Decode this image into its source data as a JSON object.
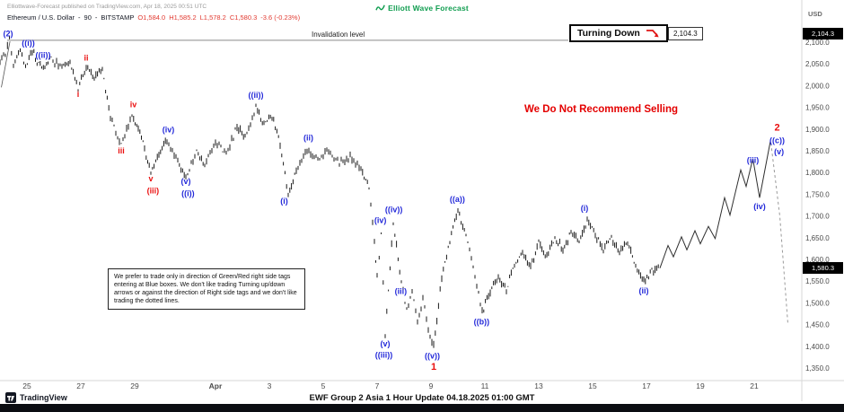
{
  "header": {
    "published": "Elliottwave-Forecast published on TradingView.com, Apr 18, 2025 00:51 UTC",
    "logo_text": "Elliott Wave Forecast",
    "symbol": "Ethereum / U.S. Dollar",
    "sep": "-",
    "interval": "90",
    "exchange": "BITSTAMP",
    "open": "O1,584.0",
    "high": "H1,585.2",
    "low": "L1,578.2",
    "close": "C1,580.3",
    "change": "-3.6 (-0.23%)"
  },
  "labels": {
    "invalidation": "Invalidation level",
    "turning_down": "Turning Down",
    "alert_price": "2,104.3",
    "last_price": "1,580.3",
    "not_selling": "We Do Not Recommend Selling",
    "note": "We prefer to trade only in direction of Green/Red right side tags entering at Blue boxes. We don't like trading Turning up/down arrows or against the direction of Right side tags and we don't like trading the dotted lines."
  },
  "footer": {
    "tradingview": "TradingView",
    "title": "EWF Group 2 Asia 1 Hour Update 04.18.2025 01:00 GMT"
  },
  "colors": {
    "brand_green": "#0f9d4f",
    "label_blue": "#2228d9",
    "label_red": "#ea0f0f",
    "candle": "#1a1a1a",
    "axis_text": "#4a4a4a",
    "badge_bg": "#000000",
    "ohlc_down": "#e23b32",
    "no_sell_red": "#e40000"
  },
  "chart_data": {
    "type": "candlestick",
    "title": "Ethereum / U.S. Dollar, 90 minute, BITSTAMP — Elliott Wave count",
    "currency": "USD",
    "grid": false,
    "day_zero_date": "2025-03-24",
    "invalidation_level": 2104.3,
    "last_price": 1580.3,
    "y_axis": {
      "ticks": [
        2100,
        2050,
        2000,
        1950,
        1900,
        1850,
        1800,
        1750,
        1700,
        1650,
        1600,
        1550,
        1500,
        1450,
        1400,
        1350
      ],
      "labels": [
        "2,100.0",
        "2,050.0",
        "2,000.0",
        "1,950.0",
        "1,900.0",
        "1,850.0",
        "1,800.0",
        "1,750.0",
        "1,700.0",
        "1,650.0",
        "1,600.0",
        "1,550.0",
        "1,500.0",
        "1,450.0",
        "1,400.0",
        "1,350.0"
      ],
      "ylim": [
        1350,
        2100
      ]
    },
    "x_axis": {
      "label_row": [
        {
          "label": "25",
          "day": 1
        },
        {
          "label": "27",
          "day": 3
        },
        {
          "label": "29",
          "day": 5
        },
        {
          "label": "Apr",
          "day": 8,
          "bold": true
        },
        {
          "label": "3",
          "day": 10
        },
        {
          "label": "5",
          "day": 12
        },
        {
          "label": "7",
          "day": 14
        },
        {
          "label": "9",
          "day": 16
        },
        {
          "label": "11",
          "day": 18
        },
        {
          "label": "13",
          "day": 20
        },
        {
          "label": "15",
          "day": 22
        },
        {
          "label": "17",
          "day": 24
        },
        {
          "label": "19",
          "day": 26
        },
        {
          "label": "21",
          "day": 28
        }
      ]
    },
    "price_path": [
      [
        0.0,
        2050
      ],
      [
        0.2,
        2076
      ],
      [
        0.35,
        2103
      ],
      [
        0.5,
        2046
      ],
      [
        0.75,
        2082
      ],
      [
        0.95,
        2040
      ],
      [
        1.2,
        2078
      ],
      [
        1.55,
        2036
      ],
      [
        1.9,
        2062
      ],
      [
        2.3,
        2040
      ],
      [
        2.6,
        2058
      ],
      [
        2.9,
        1992
      ],
      [
        3.2,
        2044
      ],
      [
        3.5,
        2018
      ],
      [
        3.8,
        2036
      ],
      [
        4.1,
        1926
      ],
      [
        4.5,
        1862
      ],
      [
        4.9,
        1934
      ],
      [
        5.25,
        1882
      ],
      [
        5.6,
        1798
      ],
      [
        5.9,
        1846
      ],
      [
        6.2,
        1874
      ],
      [
        6.6,
        1822
      ],
      [
        6.9,
        1792
      ],
      [
        7.3,
        1846
      ],
      [
        7.6,
        1820
      ],
      [
        8.0,
        1868
      ],
      [
        8.4,
        1842
      ],
      [
        8.8,
        1906
      ],
      [
        9.1,
        1882
      ],
      [
        9.5,
        1952
      ],
      [
        9.8,
        1912
      ],
      [
        10.1,
        1930
      ],
      [
        10.4,
        1862
      ],
      [
        10.7,
        1748
      ],
      [
        11.0,
        1802
      ],
      [
        11.4,
        1856
      ],
      [
        11.8,
        1830
      ],
      [
        12.2,
        1852
      ],
      [
        12.6,
        1822
      ],
      [
        13.0,
        1836
      ],
      [
        13.4,
        1806
      ],
      [
        13.7,
        1766
      ],
      [
        13.9,
        1640
      ],
      [
        14.0,
        1556
      ],
      [
        14.15,
        1662
      ],
      [
        14.3,
        1425
      ],
      [
        14.6,
        1688
      ],
      [
        14.9,
        1548
      ],
      [
        15.1,
        1484
      ],
      [
        15.3,
        1526
      ],
      [
        15.5,
        1462
      ],
      [
        15.7,
        1506
      ],
      [
        15.9,
        1442
      ],
      [
        16.1,
        1398
      ],
      [
        16.4,
        1562
      ],
      [
        16.7,
        1642
      ],
      [
        17.0,
        1712
      ],
      [
        17.3,
        1652
      ],
      [
        17.5,
        1604
      ],
      [
        17.9,
        1478
      ],
      [
        18.2,
        1524
      ],
      [
        18.5,
        1560
      ],
      [
        18.8,
        1532
      ],
      [
        19.1,
        1586
      ],
      [
        19.4,
        1614
      ],
      [
        19.7,
        1582
      ],
      [
        20.0,
        1642
      ],
      [
        20.3,
        1606
      ],
      [
        20.6,
        1650
      ],
      [
        20.9,
        1624
      ],
      [
        21.2,
        1662
      ],
      [
        21.5,
        1642
      ],
      [
        21.8,
        1690
      ],
      [
        22.1,
        1656
      ],
      [
        22.4,
        1622
      ],
      [
        22.7,
        1650
      ],
      [
        23.0,
        1612
      ],
      [
        23.3,
        1642
      ],
      [
        23.6,
        1584
      ],
      [
        23.9,
        1548
      ],
      [
        24.2,
        1572
      ],
      [
        24.5,
        1580
      ]
    ],
    "projection": [
      [
        24.5,
        1580
      ],
      [
        24.8,
        1632
      ],
      [
        25.0,
        1606
      ],
      [
        25.3,
        1652
      ],
      [
        25.5,
        1622
      ],
      [
        25.8,
        1666
      ],
      [
        26.0,
        1636
      ],
      [
        26.3,
        1676
      ],
      [
        26.55,
        1648
      ],
      [
        26.9,
        1742
      ],
      [
        27.1,
        1702
      ],
      [
        27.5,
        1806
      ],
      [
        27.7,
        1768
      ],
      [
        27.95,
        1832
      ],
      [
        28.2,
        1742
      ],
      [
        28.6,
        1872
      ]
    ],
    "dashed_projection": [
      [
        28.62,
        1868
      ],
      [
        28.95,
        1700
      ],
      [
        29.25,
        1452
      ]
    ],
    "trendline": [
      [
        0.05,
        1996
      ],
      [
        0.37,
        2102
      ]
    ],
    "annotations": [
      {
        "t": "(2)",
        "d": 0.3,
        "p": 2113,
        "c": "blue"
      },
      {
        "t": "((i))",
        "d": 1.05,
        "p": 2092,
        "c": "blue"
      },
      {
        "t": "((ii))",
        "d": 1.6,
        "p": 2064,
        "c": "blue"
      },
      {
        "t": "i",
        "d": 2.9,
        "p": 1974,
        "c": "red"
      },
      {
        "t": "ii",
        "d": 3.2,
        "p": 2058,
        "c": "red"
      },
      {
        "t": "iii",
        "d": 4.5,
        "p": 1844,
        "c": "red"
      },
      {
        "t": "iv",
        "d": 4.95,
        "p": 1950,
        "c": "red"
      },
      {
        "t": "v",
        "d": 5.6,
        "p": 1780,
        "c": "red"
      },
      {
        "t": "(iii)",
        "d": 5.68,
        "p": 1752,
        "c": "red"
      },
      {
        "t": "(iv)",
        "d": 6.25,
        "p": 1892,
        "c": "blue"
      },
      {
        "t": "(v)",
        "d": 6.9,
        "p": 1774,
        "c": "blue"
      },
      {
        "t": "((i))",
        "d": 6.98,
        "p": 1746,
        "c": "blue"
      },
      {
        "t": "((ii))",
        "d": 9.5,
        "p": 1972,
        "c": "blue"
      },
      {
        "t": "(i)",
        "d": 10.55,
        "p": 1728,
        "c": "blue"
      },
      {
        "t": "(ii)",
        "d": 11.45,
        "p": 1874,
        "c": "blue"
      },
      {
        "t": "(iv)",
        "d": 14.12,
        "p": 1684,
        "c": "blue"
      },
      {
        "t": "((iv))",
        "d": 14.62,
        "p": 1708,
        "c": "blue"
      },
      {
        "t": "(iii)",
        "d": 14.88,
        "p": 1520,
        "c": "blue"
      },
      {
        "t": "(v)",
        "d": 14.3,
        "p": 1400,
        "c": "blue"
      },
      {
        "t": "((iii))",
        "d": 14.25,
        "p": 1374,
        "c": "blue"
      },
      {
        "t": "((v))",
        "d": 16.05,
        "p": 1372,
        "c": "blue"
      },
      {
        "t": "1",
        "d": 16.1,
        "p": 1346,
        "c": "red",
        "s": 11
      },
      {
        "t": "((a))",
        "d": 16.98,
        "p": 1732,
        "c": "blue"
      },
      {
        "t": "((b))",
        "d": 17.88,
        "p": 1450,
        "c": "blue"
      },
      {
        "t": "(i)",
        "d": 21.7,
        "p": 1712,
        "c": "blue"
      },
      {
        "t": "(ii)",
        "d": 23.9,
        "p": 1522,
        "c": "blue"
      },
      {
        "t": "(iii)",
        "d": 27.95,
        "p": 1822,
        "c": "blue"
      },
      {
        "t": "(iv)",
        "d": 28.2,
        "p": 1716,
        "c": "blue"
      },
      {
        "t": "2",
        "d": 28.85,
        "p": 1896,
        "c": "red",
        "s": 11
      },
      {
        "t": "((c))",
        "d": 28.85,
        "p": 1868,
        "c": "blue"
      },
      {
        "t": "(v)",
        "d": 28.92,
        "p": 1842,
        "c": "blue"
      }
    ]
  }
}
